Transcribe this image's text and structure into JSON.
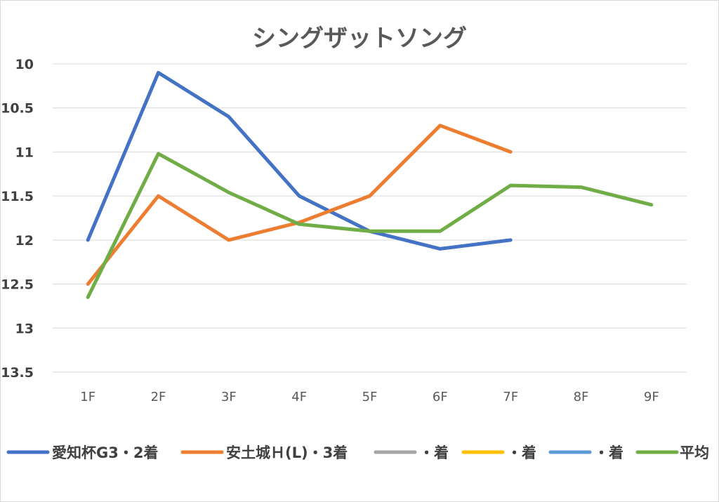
{
  "chart_data": {
    "type": "line",
    "title": "シングザットソング",
    "categories": [
      "1F",
      "2F",
      "3F",
      "4F",
      "5F",
      "6F",
      "7F",
      "8F",
      "9F"
    ],
    "y_ticks": [
      "10",
      "10.5",
      "11",
      "11.5",
      "12",
      "12.5",
      "13",
      "13.5"
    ],
    "ylim": [
      10,
      13.5
    ],
    "y_axis_reversed": true,
    "grid": true,
    "legend_position": "bottom",
    "series": [
      {
        "name": "愛知杯G3・2着",
        "color": "#4472C4",
        "values": [
          12.0,
          10.1,
          10.6,
          11.5,
          11.9,
          12.1,
          12.0,
          null,
          null
        ]
      },
      {
        "name": "安土城Ｈ(L)・3着",
        "color": "#ED7D31",
        "values": [
          12.5,
          11.5,
          12.0,
          11.8,
          11.5,
          10.7,
          11.0,
          null,
          null
        ]
      },
      {
        "name": "・着",
        "color": "#A5A5A5",
        "values": [
          null,
          null,
          null,
          null,
          null,
          null,
          null,
          null,
          null
        ]
      },
      {
        "name": "・着",
        "color": "#FFC000",
        "values": [
          null,
          null,
          null,
          null,
          null,
          null,
          null,
          null,
          null
        ]
      },
      {
        "name": "・着",
        "color": "#5B9BD5",
        "values": [
          null,
          null,
          null,
          null,
          null,
          null,
          null,
          null,
          null
        ]
      },
      {
        "name": "平均",
        "color": "#70AD47",
        "values": [
          12.65,
          11.02,
          11.46,
          11.82,
          11.9,
          11.9,
          11.38,
          11.4,
          11.6
        ]
      }
    ]
  }
}
